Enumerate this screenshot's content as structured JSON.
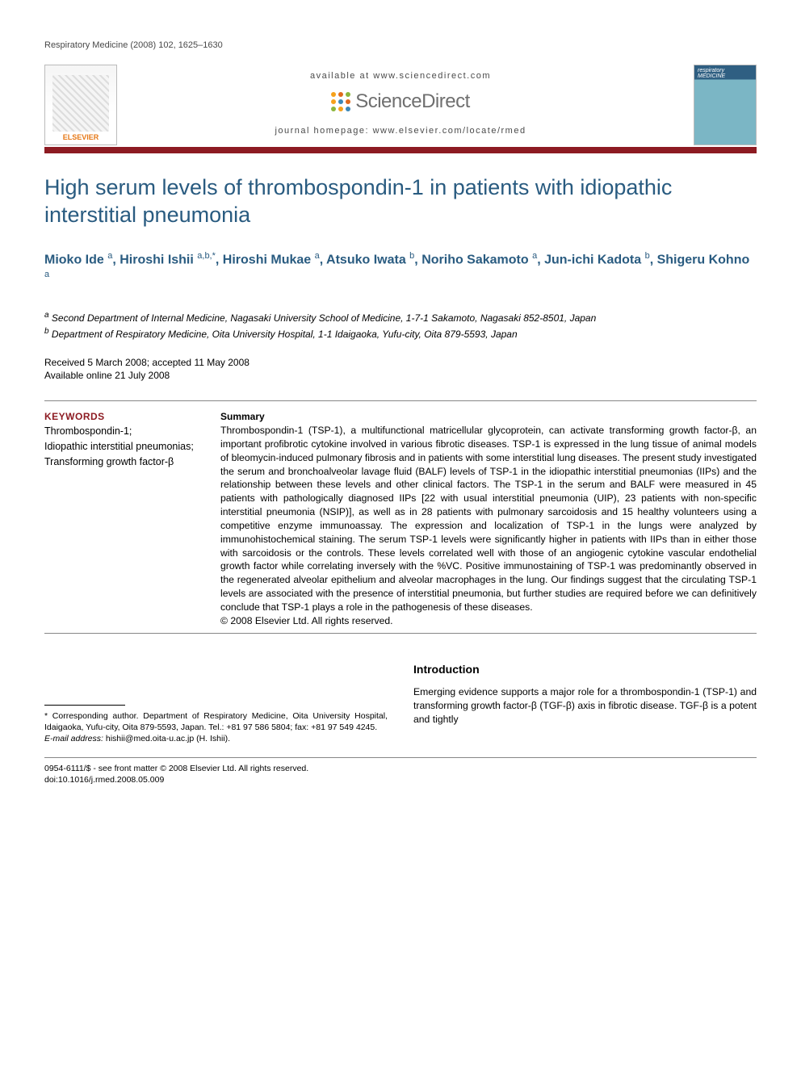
{
  "running_head": "Respiratory Medicine (2008) 102, 1625–1630",
  "header": {
    "available_at": "available at www.sciencedirect.com",
    "sd_brand": "ScienceDirect",
    "journal_homepage": "journal homepage: www.elsevier.com/locate/rmed",
    "elsevier_label": "ELSEVIER",
    "journal_cover_text": "respiratory MEDICINE",
    "sd_dot_colors": [
      "#f6a11a",
      "#e06a1c",
      "#8cb63c",
      "#f6a11a",
      "#3b87b7",
      "#e06a1c",
      "#8cb63c",
      "#f6a11a",
      "#3b87b7"
    ]
  },
  "title": "High serum levels of thrombospondin-1 in patients with idiopathic interstitial pneumonia",
  "authors_html": "Mioko Ide <sup>a</sup>, Hiroshi Ishii <sup>a,b,*</sup>, Hiroshi Mukae <sup>a</sup>, Atsuko Iwata <sup>b</sup>, Noriho Sakamoto <sup>a</sup>, Jun-ichi Kadota <sup>b</sup>, Shigeru Kohno <sup>a</sup>",
  "affiliations": [
    "a Second Department of Internal Medicine, Nagasaki University School of Medicine, 1-7-1 Sakamoto, Nagasaki 852-8501, Japan",
    "b Department of Respiratory Medicine, Oita University Hospital, 1-1 Idaigaoka, Yufu-city, Oita 879-5593, Japan"
  ],
  "dates": {
    "received_accepted": "Received 5 March 2008; accepted 11 May 2008",
    "online": "Available online 21 July 2008"
  },
  "keywords": {
    "head": "KEYWORDS",
    "body": "Thrombospondin-1;\nIdiopathic interstitial pneumonias;\nTransforming growth factor-β"
  },
  "abstract": {
    "head": "Summary",
    "body": "Thrombospondin-1 (TSP-1), a multifunctional matricellular glycoprotein, can activate transforming growth factor-β, an important profibrotic cytokine involved in various fibrotic diseases. TSP-1 is expressed in the lung tissue of animal models of bleomycin-induced pulmonary fibrosis and in patients with some interstitial lung diseases. The present study investigated the serum and bronchoalveolar lavage fluid (BALF) levels of TSP-1 in the idiopathic interstitial pneumonias (IIPs) and the relationship between these levels and other clinical factors. The TSP-1 in the serum and BALF were measured in 45 patients with pathologically diagnosed IIPs [22 with usual interstitial pneumonia (UIP), 23 patients with non-specific interstitial pneumonia (NSIP)], as well as in 28 patients with pulmonary sarcoidosis and 15 healthy volunteers using a competitive enzyme immunoassay. The expression and localization of TSP-1 in the lungs were analyzed by immunohistochemical staining. The serum TSP-1 levels were significantly higher in patients with IIPs than in either those with sarcoidosis or the controls. These levels correlated well with those of an angiogenic cytokine vascular endothelial growth factor while correlating inversely with the %VC. Positive immunostaining of TSP-1 was predominantly observed in the regenerated alveolar epithelium and alveolar macrophages in the lung. Our findings suggest that the circulating TSP-1 levels are associated with the presence of interstitial pneumonia, but further studies are required before we can definitively conclude that TSP-1 plays a role in the pathogenesis of these diseases.",
    "copyright": "© 2008 Elsevier Ltd. All rights reserved."
  },
  "footnote": {
    "corr": "* Corresponding author. Department of Respiratory Medicine, Oita University Hospital, Idaigaoka, Yufu-city, Oita 879-5593, Japan. Tel.: +81 97 586 5804; fax: +81 97 549 4245.",
    "email_label": "E-mail address:",
    "email": "hishii@med.oita-u.ac.jp",
    "email_who": "(H. Ishii)."
  },
  "intro": {
    "head": "Introduction",
    "body": "Emerging evidence supports a major role for a thrombospondin-1 (TSP-1) and transforming growth factor-β (TGF-β) axis in fibrotic disease. TGF-β is a potent and tightly"
  },
  "footer": {
    "front_matter": "0954-6111/$ - see front matter © 2008 Elsevier Ltd. All rights reserved.",
    "doi": "doi:10.1016/j.rmed.2008.05.009"
  },
  "colors": {
    "rule_red": "#8d1b22",
    "title_blue": "#295b80"
  }
}
